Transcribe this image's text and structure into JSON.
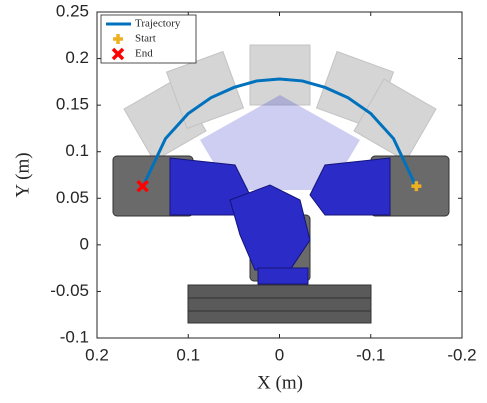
{
  "chart_data": {
    "type": "line",
    "xlabel": "X (m)",
    "ylabel": "Y (m)",
    "xlim": [
      0.2,
      -0.2
    ],
    "ylim": [
      -0.1,
      0.25
    ],
    "xticks": [
      0.2,
      0.1,
      0,
      -0.1,
      -0.2
    ],
    "yticks": [
      -0.1,
      -0.05,
      0,
      0.05,
      0.1,
      0.15,
      0.2,
      0.25
    ],
    "grid": false,
    "legend": "upper left",
    "series": [
      {
        "name": "Trajectory",
        "color": "#0072bd",
        "marker": "none",
        "x": [
          -0.15,
          -0.125,
          -0.1,
          -0.075,
          -0.05,
          -0.025,
          0,
          0.025,
          0.05,
          0.075,
          0.1,
          0.125,
          0.15
        ],
        "values": [
          0.062,
          0.114,
          0.141,
          0.158,
          0.169,
          0.176,
          0.178,
          0.176,
          0.169,
          0.158,
          0.141,
          0.114,
          0.062
        ]
      },
      {
        "name": "Start",
        "color": "#edb120",
        "marker": "plus",
        "x": [
          -0.15
        ],
        "values": [
          0.063
        ]
      },
      {
        "name": "End",
        "color": "#ff0000",
        "marker": "x",
        "x": [
          0.15
        ],
        "values": [
          0.063
        ]
      }
    ]
  }
}
